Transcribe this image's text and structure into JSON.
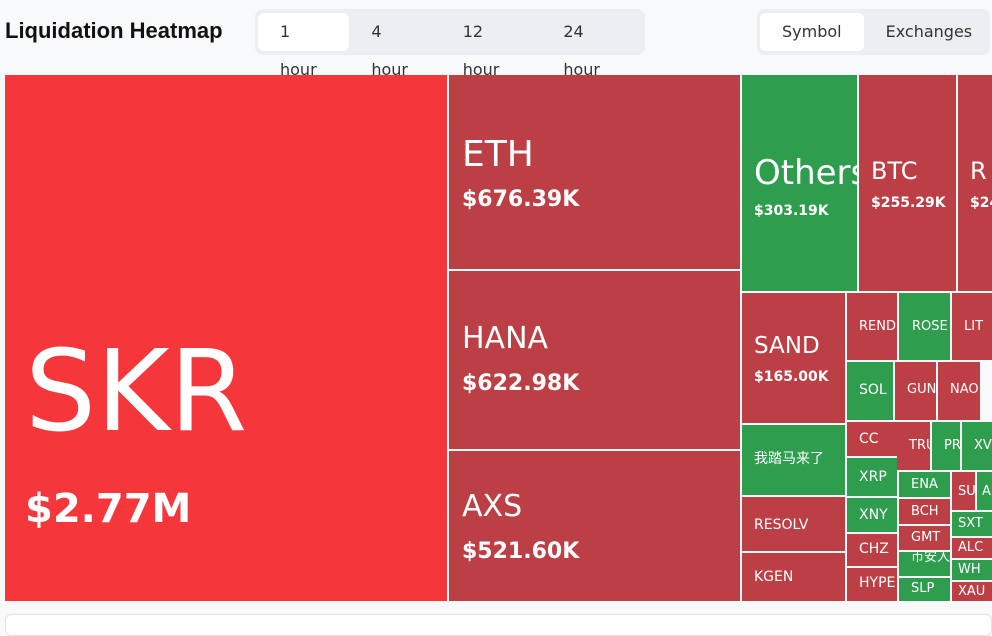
{
  "header": {
    "title": "Liquidation Heatmap",
    "time_tabs": [
      "1 hour",
      "4 hour",
      "12 hour",
      "24 hour"
    ],
    "view_tabs": [
      "Symbol",
      "Exchanges"
    ]
  },
  "heatmap": {
    "tiles": [
      {
        "label": "SKR",
        "value_label": "$2.77M"
      },
      {
        "label": "ETH",
        "value_label": "$676.39K"
      },
      {
        "label": "HANA",
        "value_label": "$622.98K"
      },
      {
        "label": "AXS",
        "value_label": "$521.60K"
      },
      {
        "label": "Others",
        "value_label": "$303.19K"
      },
      {
        "label": "BTC",
        "value_label": "$255.29K"
      },
      {
        "label": "R",
        "value_label": "$24"
      },
      {
        "label": "SAND",
        "value_label": "$165.00K"
      },
      {
        "label": "我踏马来了"
      },
      {
        "label": "RESOLV"
      },
      {
        "label": "KGEN"
      },
      {
        "label": "REND"
      },
      {
        "label": "SOL"
      },
      {
        "label": "CC"
      },
      {
        "label": "XRP"
      },
      {
        "label": "XNY"
      },
      {
        "label": "CHZ"
      },
      {
        "label": "HYPE"
      },
      {
        "label": "ROSE"
      },
      {
        "label": "LIT"
      },
      {
        "label": "GUN"
      },
      {
        "label": "NAO"
      },
      {
        "label": "TRU"
      },
      {
        "label": "PR"
      },
      {
        "label": "XV"
      },
      {
        "label": "ENA"
      },
      {
        "label": "SU"
      },
      {
        "label": "A"
      },
      {
        "label": "BCH"
      },
      {
        "label": "GMT"
      },
      {
        "label": "币安人生"
      },
      {
        "label": "SLP"
      },
      {
        "label": "SXT"
      },
      {
        "label": "ALC"
      },
      {
        "label": "WH"
      },
      {
        "label": "XAU"
      }
    ]
  }
}
